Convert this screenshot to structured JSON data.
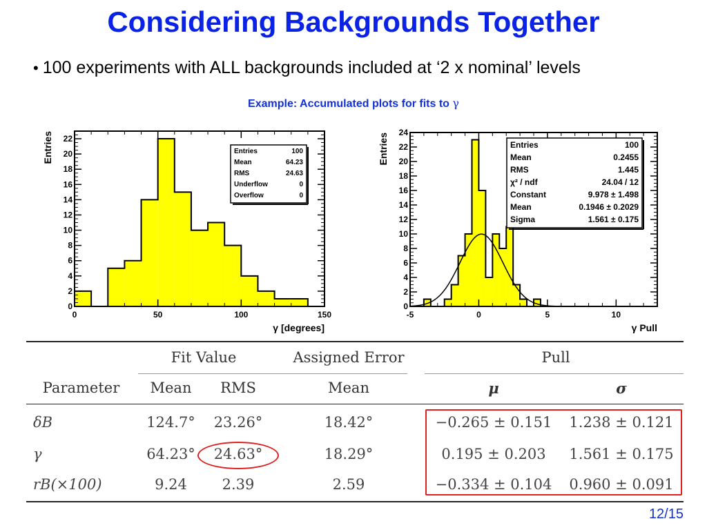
{
  "slide": {
    "title": "Considering Backgrounds Together",
    "bullet": "100 experiments with ALL backgrounds included at ‘2 x nominal’ levels",
    "subtitle_prefix": "Example: Accumulated plots for fits to ",
    "subtitle_symbol": "γ",
    "page": "12/15"
  },
  "chart_data": [
    {
      "type": "bar",
      "ylabel": "Entries",
      "xlabel": "γ [degrees]",
      "xlim": [
        0,
        150
      ],
      "ylim": [
        0,
        23
      ],
      "bin_edges": [
        0,
        10,
        20,
        30,
        40,
        50,
        60,
        70,
        80,
        90,
        100,
        110,
        120,
        130,
        140
      ],
      "values": [
        2,
        0,
        5,
        6,
        14,
        22,
        15,
        10,
        11,
        8,
        4,
        2,
        1,
        1
      ],
      "xticks": [
        "0",
        "50",
        "100",
        "150"
      ],
      "yticks": [
        "0",
        "2",
        "4",
        "6",
        "8",
        "10",
        "12",
        "14",
        "16",
        "18",
        "20",
        "22"
      ],
      "fill_color": "#ffff00",
      "stats": [
        {
          "label": "Entries",
          "value": "100"
        },
        {
          "label": "Mean",
          "value": "64.23"
        },
        {
          "label": "RMS",
          "value": "24.63"
        },
        {
          "label": "Underflow",
          "value": "0"
        },
        {
          "label": "Overflow",
          "value": "0"
        }
      ]
    },
    {
      "type": "bar",
      "ylabel": "Entries",
      "xlabel": "γ Pull",
      "xlim": [
        -5,
        13
      ],
      "ylim": [
        0,
        24
      ],
      "bin_edges": [
        -4,
        -3.5,
        -3,
        -2.5,
        -2,
        -1.5,
        -1,
        -0.5,
        0,
        0.5,
        1,
        1.5,
        2,
        2.5,
        3,
        3.5,
        4,
        4.5,
        5
      ],
      "values": [
        1,
        0,
        0,
        1,
        3,
        7,
        10,
        23,
        16,
        4,
        10,
        8,
        11,
        3,
        1,
        0,
        1,
        0
      ],
      "xticks": [
        "-5",
        "0",
        "5",
        "10"
      ],
      "yticks": [
        "0",
        "2",
        "4",
        "6",
        "8",
        "10",
        "12",
        "14",
        "16",
        "18",
        "20",
        "22",
        "24"
      ],
      "fill_color": "#ffff00",
      "fit": {
        "constant": 9.978,
        "mean": 0.1946,
        "sigma": 1.561
      },
      "stats": [
        {
          "label": "Entries",
          "value": "100"
        },
        {
          "label": "Mean",
          "value": "0.2455"
        },
        {
          "label": "RMS",
          "value": "1.445"
        },
        {
          "label": "χ² / ndf",
          "value": "24.04 / 12"
        },
        {
          "label": "Constant",
          "value": "9.978 ± 1.498"
        },
        {
          "label": "Mean",
          "value": "0.1946 ± 0.2029"
        },
        {
          "label": "Sigma",
          "value": "1.561 ± 0.175"
        }
      ]
    }
  ],
  "table": {
    "group_headers": {
      "fit_value": "Fit Value",
      "assigned_error": "Assigned Error",
      "pull": "Pull"
    },
    "col_headers": {
      "parameter": "Parameter",
      "mean": "Mean",
      "rms": "RMS",
      "err_mean": "Mean",
      "mu": "μ",
      "sigma": "σ"
    },
    "rows": [
      {
        "param": "δB",
        "mean": "124.7°",
        "rms": "23.26°",
        "err": "18.42°",
        "mu": "−0.265 ± 0.151",
        "sigma": "1.238 ± 0.121"
      },
      {
        "param": "γ",
        "mean": "64.23°",
        "rms": "24.63°",
        "err": "18.29°",
        "mu": "0.195 ± 0.203",
        "sigma": "1.561 ± 0.175"
      },
      {
        "param": "rB(×100)",
        "mean": "9.24",
        "rms": "2.39",
        "err": "2.59",
        "mu": "−0.334 ± 0.104",
        "sigma": "0.960 ± 0.091"
      }
    ]
  }
}
